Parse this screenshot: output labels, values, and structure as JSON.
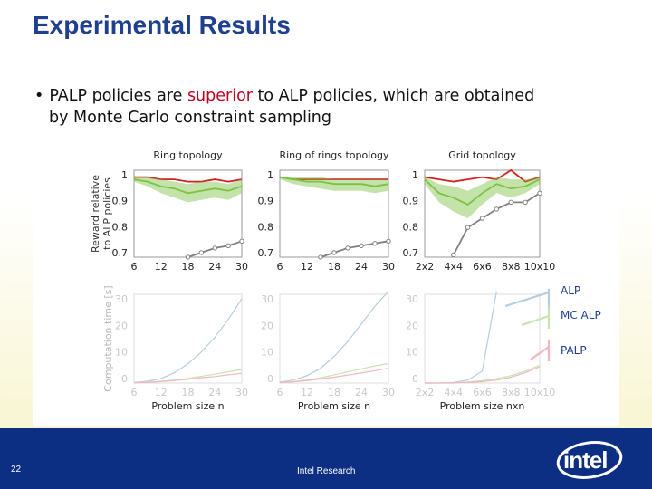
{
  "slide": {
    "title": "Experimental Results",
    "bullet_bullet": "•",
    "bullet_pre": "PALP policies are ",
    "bullet_highlight": "superior",
    "bullet_post": " to ALP policies, which are obtained",
    "bullet_line2": "by Monte Carlo constraint sampling",
    "highlight_color": "#c0001e",
    "title_color": "#1f3f8f"
  },
  "footer": {
    "page_number": "22",
    "organization": "Intel Research",
    "logo_text": "intel",
    "logo_mark": "®",
    "background_color": "#0c2f83"
  },
  "chart_data": [
    {
      "type": "line",
      "title": "Ring topology",
      "ylabel": "Reward relative to ALP policies",
      "x": [
        6,
        9,
        12,
        15,
        18,
        21,
        24,
        27,
        30
      ],
      "xticks": [
        "6",
        "12",
        "18",
        "24",
        "30"
      ],
      "yticks": [
        "1",
        "0.9",
        "0.8",
        "0.7"
      ],
      "ylim": [
        0.65,
        1.03
      ],
      "series": [
        {
          "color": "#d42020",
          "values": [
            1.0,
            1.0,
            0.99,
            0.99,
            0.98,
            0.98,
            0.99,
            0.98,
            0.99
          ]
        },
        {
          "color": "#7cc242",
          "values": [
            0.99,
            0.98,
            0.96,
            0.95,
            0.93,
            0.94,
            0.95,
            0.94,
            0.96
          ],
          "band_low": [
            0.98,
            0.96,
            0.93,
            0.91,
            0.89,
            0.9,
            0.91,
            0.9,
            0.93
          ],
          "band_high": [
            1.0,
            1.0,
            0.99,
            0.98,
            0.97,
            0.98,
            0.98,
            0.97,
            0.99
          ]
        },
        {
          "color": "#808080",
          "values": [
            null,
            null,
            null,
            null,
            0.65,
            0.67,
            0.69,
            0.7,
            0.72
          ]
        }
      ]
    },
    {
      "type": "line",
      "title": "Ring of rings topology",
      "x": [
        6,
        9,
        12,
        15,
        18,
        21,
        24,
        27,
        30
      ],
      "xticks": [
        "6",
        "12",
        "18",
        "24",
        "30"
      ],
      "yticks": [
        "1",
        "0.9",
        "0.8",
        "0.7"
      ],
      "ylim": [
        0.65,
        1.03
      ],
      "series": [
        {
          "color": "#d42020",
          "values": [
            1.0,
            0.99,
            0.99,
            0.99,
            0.99,
            0.99,
            0.99,
            0.99,
            0.99
          ]
        },
        {
          "color": "#7cc242",
          "values": [
            1.0,
            0.99,
            0.98,
            0.98,
            0.97,
            0.97,
            0.97,
            0.96,
            0.97
          ],
          "band_low": [
            0.99,
            0.97,
            0.96,
            0.95,
            0.94,
            0.94,
            0.94,
            0.93,
            0.94
          ],
          "band_high": [
            1.0,
            1.0,
            1.0,
            1.0,
            0.99,
            0.99,
            0.99,
            0.99,
            0.99
          ]
        },
        {
          "color": "#808080",
          "values": [
            null,
            null,
            null,
            0.65,
            0.67,
            0.69,
            0.7,
            0.71,
            0.72
          ]
        }
      ]
    },
    {
      "type": "line",
      "title": "Grid topology",
      "x": [
        2,
        3,
        4,
        5,
        6,
        7,
        8,
        9,
        10
      ],
      "xticks": [
        "2x2",
        "4x4",
        "6x6",
        "8x8",
        "10x10"
      ],
      "yticks": [
        "1",
        "0.9",
        "0.8",
        "0.7"
      ],
      "ylim": [
        0.65,
        1.03
      ],
      "series": [
        {
          "color": "#d42020",
          "values": [
            1.0,
            0.99,
            0.98,
            0.99,
            1.0,
            0.99,
            1.03,
            0.98,
            1.0
          ]
        },
        {
          "color": "#7cc242",
          "values": [
            0.99,
            0.93,
            0.91,
            0.88,
            0.93,
            0.97,
            0.95,
            0.96,
            0.99
          ],
          "band_low": [
            0.97,
            0.89,
            0.85,
            0.82,
            0.88,
            0.93,
            0.91,
            0.93,
            0.97
          ],
          "band_high": [
            1.0,
            0.97,
            0.96,
            0.94,
            0.97,
            1.0,
            0.99,
            0.99,
            1.0
          ]
        },
        {
          "color": "#808080",
          "values": [
            null,
            null,
            0.66,
            0.78,
            0.82,
            0.86,
            0.89,
            0.89,
            0.93
          ]
        }
      ]
    },
    {
      "type": "line",
      "ylabel": "Computation time [s]",
      "xlabel": "Problem size n",
      "x": [
        6,
        9,
        12,
        15,
        18,
        21,
        24,
        27,
        30
      ],
      "xticks": [
        "6",
        "12",
        "18",
        "24",
        "30"
      ],
      "yticks": [
        "30",
        "20",
        "10",
        "0"
      ],
      "ylim": [
        0,
        30
      ],
      "series": [
        {
          "color": "#b4cde0",
          "values": [
            0.2,
            0.6,
            1.5,
            3.5,
            6.5,
            10.5,
            15.5,
            21.5,
            28.5
          ]
        },
        {
          "color": "#c8e2b0",
          "values": [
            0.1,
            0.3,
            0.6,
            1.0,
            1.6,
            2.3,
            3.0,
            3.8,
            4.6
          ]
        },
        {
          "color": "#f2b6bf",
          "values": [
            0.1,
            0.2,
            0.5,
            0.9,
            1.3,
            1.8,
            2.2,
            2.8,
            3.3
          ]
        }
      ]
    },
    {
      "type": "line",
      "xlabel": "Problem size n",
      "x": [
        6,
        9,
        12,
        15,
        18,
        21,
        24,
        27,
        30
      ],
      "xticks": [
        "6",
        "12",
        "18",
        "24",
        "30"
      ],
      "yticks": [
        "30",
        "20",
        "10",
        "0"
      ],
      "ylim": [
        0,
        30
      ],
      "series": [
        {
          "color": "#b4cde0",
          "values": [
            0.3,
            1.0,
            2.5,
            5.0,
            9.0,
            14.0,
            20.0,
            26.0,
            31.0
          ]
        },
        {
          "color": "#c8e2b0",
          "values": [
            0.2,
            0.5,
            1.0,
            1.8,
            2.8,
            3.8,
            4.8,
            5.8,
            6.6
          ]
        },
        {
          "color": "#f2b6bf",
          "values": [
            0.1,
            0.4,
            0.8,
            1.4,
            2.0,
            2.7,
            3.4,
            4.2,
            5.0
          ]
        }
      ]
    },
    {
      "type": "line",
      "xlabel": "Problem size nxn",
      "x": [
        2,
        3,
        4,
        5,
        6,
        7,
        8,
        9,
        10
      ],
      "xticks": [
        "2x2",
        "4x4",
        "6x6",
        "8x8",
        "10x10"
      ],
      "yticks": [
        "30",
        "20",
        "10",
        "0"
      ],
      "ylim": [
        0,
        30
      ],
      "series": [
        {
          "color": "#b4cde0",
          "values": [
            0.0,
            0.0,
            0.2,
            1.0,
            4.0,
            31.0,
            null,
            null,
            null
          ]
        },
        {
          "color": "#c8e2b0",
          "values": [
            0.0,
            0.0,
            0.1,
            0.3,
            0.8,
            1.5,
            2.5,
            4.0,
            6.0
          ]
        },
        {
          "color": "#f2b6bf",
          "values": [
            0.0,
            0.0,
            0.0,
            0.2,
            0.5,
            1.0,
            2.0,
            3.5,
            5.5
          ]
        }
      ]
    },
    {
      "type": "legend",
      "entries": [
        {
          "label": "ALP",
          "color": "#b4cde0"
        },
        {
          "label": "MC ALP",
          "color": "#c8e2b0"
        },
        {
          "label": "PALP",
          "color": "#f2b6bf"
        }
      ]
    }
  ]
}
